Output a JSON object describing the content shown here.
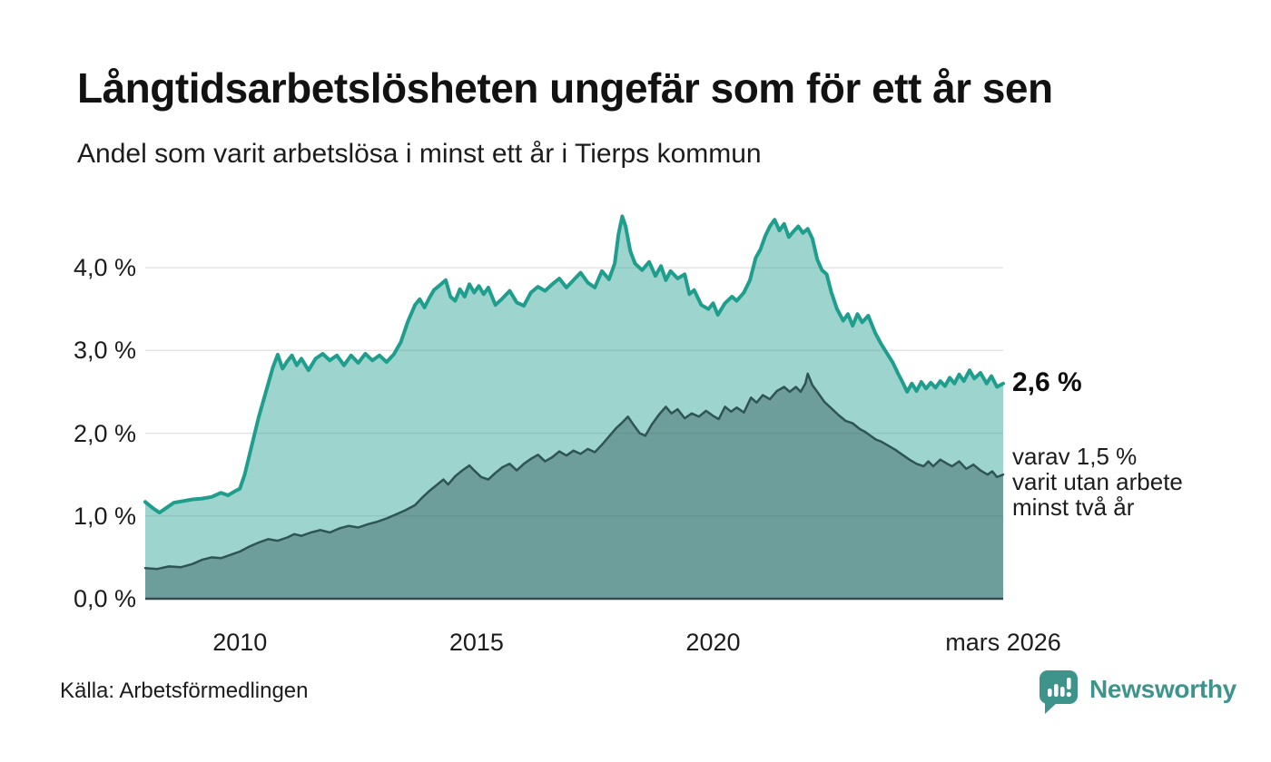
{
  "header": {
    "title": "Långtidsarbetslösheten ungefär som för ett år sen",
    "subtitle": "Andel som varit arbetslösa i minst ett år i Tierps kommun"
  },
  "annotations": {
    "end_label": "2,6 %",
    "end_value": 2.6,
    "sub_value": 1.5,
    "sub_lines": [
      "varav 1,5 %",
      "varit utan arbete",
      "minst två år"
    ]
  },
  "source": {
    "label": "Källa: Arbetsförmedlingen"
  },
  "branding": {
    "name": "Newsworthy",
    "color": "#3E948B",
    "logo_icon": "speech-bubble-bar-chart-exclamation"
  },
  "chart_data": {
    "type": "area",
    "title": "Långtidsarbetslösheten ungefär som för ett år sen",
    "subtitle": "Andel som varit arbetslösa i minst ett år i Tierps kommun",
    "xlabel": "",
    "ylabel": "",
    "unit": "%",
    "grid": "horizontal",
    "legend": "none",
    "x_domain": [
      2008.0,
      2026.13
    ],
    "ylim": [
      0,
      4.9
    ],
    "grid_color": "#e2e2e2",
    "axis_line_color": "#35494b",
    "yticks": [
      {
        "v": 0,
        "label": "0,0 %"
      },
      {
        "v": 1,
        "label": "1,0 %"
      },
      {
        "v": 2,
        "label": "2,0 %"
      },
      {
        "v": 3,
        "label": "3,0 %"
      },
      {
        "v": 4,
        "label": "4,0 %"
      }
    ],
    "xticks": [
      {
        "x": 2010,
        "label": "2010"
      },
      {
        "x": 2015,
        "label": "2015"
      },
      {
        "x": 2020,
        "label": "2020"
      },
      {
        "x": 2026.13,
        "label": "mars 2026"
      }
    ],
    "series": [
      {
        "name": "Arbetslösa minst ett år",
        "line_color": "#1F9E8E",
        "fill_color": "rgba(31,158,142,0.44)",
        "line_width": 4,
        "end_value": 2.6,
        "points": [
          [
            2008.0,
            1.17
          ],
          [
            2008.15,
            1.1
          ],
          [
            2008.3,
            1.04
          ],
          [
            2008.45,
            1.1
          ],
          [
            2008.6,
            1.16
          ],
          [
            2008.8,
            1.18
          ],
          [
            2009.0,
            1.2
          ],
          [
            2009.2,
            1.21
          ],
          [
            2009.4,
            1.23
          ],
          [
            2009.6,
            1.28
          ],
          [
            2009.75,
            1.25
          ],
          [
            2009.9,
            1.3
          ],
          [
            2010.0,
            1.33
          ],
          [
            2010.1,
            1.5
          ],
          [
            2010.25,
            1.85
          ],
          [
            2010.4,
            2.2
          ],
          [
            2010.55,
            2.5
          ],
          [
            2010.7,
            2.8
          ],
          [
            2010.8,
            2.95
          ],
          [
            2010.9,
            2.78
          ],
          [
            2011.0,
            2.87
          ],
          [
            2011.1,
            2.94
          ],
          [
            2011.2,
            2.82
          ],
          [
            2011.3,
            2.9
          ],
          [
            2011.45,
            2.76
          ],
          [
            2011.6,
            2.9
          ],
          [
            2011.75,
            2.96
          ],
          [
            2011.9,
            2.88
          ],
          [
            2012.05,
            2.94
          ],
          [
            2012.2,
            2.82
          ],
          [
            2012.35,
            2.94
          ],
          [
            2012.5,
            2.85
          ],
          [
            2012.65,
            2.96
          ],
          [
            2012.8,
            2.88
          ],
          [
            2012.95,
            2.94
          ],
          [
            2013.1,
            2.86
          ],
          [
            2013.25,
            2.95
          ],
          [
            2013.4,
            3.1
          ],
          [
            2013.55,
            3.35
          ],
          [
            2013.7,
            3.55
          ],
          [
            2013.8,
            3.62
          ],
          [
            2013.9,
            3.52
          ],
          [
            2014.0,
            3.63
          ],
          [
            2014.1,
            3.73
          ],
          [
            2014.25,
            3.8
          ],
          [
            2014.35,
            3.85
          ],
          [
            2014.45,
            3.65
          ],
          [
            2014.55,
            3.6
          ],
          [
            2014.65,
            3.74
          ],
          [
            2014.75,
            3.65
          ],
          [
            2014.85,
            3.8
          ],
          [
            2014.95,
            3.7
          ],
          [
            2015.05,
            3.78
          ],
          [
            2015.15,
            3.68
          ],
          [
            2015.25,
            3.76
          ],
          [
            2015.4,
            3.55
          ],
          [
            2015.55,
            3.63
          ],
          [
            2015.7,
            3.72
          ],
          [
            2015.85,
            3.58
          ],
          [
            2016.0,
            3.54
          ],
          [
            2016.15,
            3.7
          ],
          [
            2016.3,
            3.77
          ],
          [
            2016.45,
            3.72
          ],
          [
            2016.6,
            3.8
          ],
          [
            2016.75,
            3.87
          ],
          [
            2016.9,
            3.76
          ],
          [
            2017.05,
            3.85
          ],
          [
            2017.2,
            3.94
          ],
          [
            2017.35,
            3.82
          ],
          [
            2017.5,
            3.76
          ],
          [
            2017.65,
            3.96
          ],
          [
            2017.8,
            3.86
          ],
          [
            2017.92,
            4.05
          ],
          [
            2018.0,
            4.4
          ],
          [
            2018.08,
            4.62
          ],
          [
            2018.15,
            4.5
          ],
          [
            2018.25,
            4.2
          ],
          [
            2018.35,
            4.05
          ],
          [
            2018.5,
            3.97
          ],
          [
            2018.65,
            4.07
          ],
          [
            2018.78,
            3.9
          ],
          [
            2018.9,
            4.02
          ],
          [
            2019.0,
            3.85
          ],
          [
            2019.1,
            3.96
          ],
          [
            2019.25,
            3.87
          ],
          [
            2019.4,
            3.92
          ],
          [
            2019.5,
            3.68
          ],
          [
            2019.6,
            3.73
          ],
          [
            2019.75,
            3.55
          ],
          [
            2019.9,
            3.5
          ],
          [
            2020.0,
            3.57
          ],
          [
            2020.1,
            3.43
          ],
          [
            2020.25,
            3.57
          ],
          [
            2020.4,
            3.65
          ],
          [
            2020.5,
            3.6
          ],
          [
            2020.65,
            3.7
          ],
          [
            2020.78,
            3.85
          ],
          [
            2020.9,
            4.12
          ],
          [
            2021.0,
            4.22
          ],
          [
            2021.1,
            4.38
          ],
          [
            2021.2,
            4.5
          ],
          [
            2021.3,
            4.58
          ],
          [
            2021.4,
            4.45
          ],
          [
            2021.5,
            4.53
          ],
          [
            2021.6,
            4.37
          ],
          [
            2021.7,
            4.44
          ],
          [
            2021.8,
            4.5
          ],
          [
            2021.9,
            4.42
          ],
          [
            2022.0,
            4.47
          ],
          [
            2022.1,
            4.35
          ],
          [
            2022.2,
            4.1
          ],
          [
            2022.3,
            3.97
          ],
          [
            2022.4,
            3.92
          ],
          [
            2022.5,
            3.7
          ],
          [
            2022.62,
            3.5
          ],
          [
            2022.75,
            3.36
          ],
          [
            2022.85,
            3.44
          ],
          [
            2022.95,
            3.3
          ],
          [
            2023.05,
            3.44
          ],
          [
            2023.15,
            3.34
          ],
          [
            2023.28,
            3.42
          ],
          [
            2023.42,
            3.22
          ],
          [
            2023.55,
            3.08
          ],
          [
            2023.68,
            2.96
          ],
          [
            2023.8,
            2.85
          ],
          [
            2023.9,
            2.73
          ],
          [
            2024.0,
            2.62
          ],
          [
            2024.1,
            2.5
          ],
          [
            2024.2,
            2.6
          ],
          [
            2024.3,
            2.51
          ],
          [
            2024.4,
            2.62
          ],
          [
            2024.5,
            2.54
          ],
          [
            2024.6,
            2.61
          ],
          [
            2024.7,
            2.55
          ],
          [
            2024.8,
            2.63
          ],
          [
            2024.9,
            2.57
          ],
          [
            2025.0,
            2.67
          ],
          [
            2025.1,
            2.6
          ],
          [
            2025.2,
            2.71
          ],
          [
            2025.3,
            2.63
          ],
          [
            2025.42,
            2.76
          ],
          [
            2025.52,
            2.66
          ],
          [
            2025.65,
            2.73
          ],
          [
            2025.78,
            2.6
          ],
          [
            2025.88,
            2.69
          ],
          [
            2026.0,
            2.56
          ],
          [
            2026.13,
            2.6
          ]
        ]
      },
      {
        "name": "Arbetslösa minst två år",
        "line_color": "#2E5456",
        "fill_color": "rgba(46,84,86,0.42)",
        "line_width": 2.5,
        "end_value": 1.5,
        "points": [
          [
            2008.0,
            0.37
          ],
          [
            2008.25,
            0.36
          ],
          [
            2008.5,
            0.39
          ],
          [
            2008.75,
            0.38
          ],
          [
            2009.0,
            0.42
          ],
          [
            2009.2,
            0.47
          ],
          [
            2009.4,
            0.5
          ],
          [
            2009.6,
            0.49
          ],
          [
            2009.8,
            0.53
          ],
          [
            2010.0,
            0.57
          ],
          [
            2010.2,
            0.63
          ],
          [
            2010.4,
            0.68
          ],
          [
            2010.6,
            0.72
          ],
          [
            2010.8,
            0.7
          ],
          [
            2011.0,
            0.74
          ],
          [
            2011.15,
            0.78
          ],
          [
            2011.3,
            0.76
          ],
          [
            2011.5,
            0.8
          ],
          [
            2011.7,
            0.83
          ],
          [
            2011.9,
            0.8
          ],
          [
            2012.1,
            0.85
          ],
          [
            2012.3,
            0.88
          ],
          [
            2012.5,
            0.86
          ],
          [
            2012.7,
            0.9
          ],
          [
            2012.9,
            0.93
          ],
          [
            2013.1,
            0.97
          ],
          [
            2013.3,
            1.02
          ],
          [
            2013.5,
            1.07
          ],
          [
            2013.7,
            1.13
          ],
          [
            2013.85,
            1.22
          ],
          [
            2014.0,
            1.3
          ],
          [
            2014.15,
            1.37
          ],
          [
            2014.3,
            1.44
          ],
          [
            2014.4,
            1.38
          ],
          [
            2014.55,
            1.48
          ],
          [
            2014.7,
            1.55
          ],
          [
            2014.85,
            1.61
          ],
          [
            2014.95,
            1.55
          ],
          [
            2015.1,
            1.47
          ],
          [
            2015.25,
            1.44
          ],
          [
            2015.4,
            1.52
          ],
          [
            2015.55,
            1.59
          ],
          [
            2015.7,
            1.63
          ],
          [
            2015.85,
            1.55
          ],
          [
            2016.0,
            1.63
          ],
          [
            2016.15,
            1.69
          ],
          [
            2016.3,
            1.74
          ],
          [
            2016.45,
            1.66
          ],
          [
            2016.6,
            1.71
          ],
          [
            2016.75,
            1.78
          ],
          [
            2016.9,
            1.73
          ],
          [
            2017.05,
            1.79
          ],
          [
            2017.2,
            1.75
          ],
          [
            2017.35,
            1.81
          ],
          [
            2017.5,
            1.77
          ],
          [
            2017.65,
            1.86
          ],
          [
            2017.8,
            1.96
          ],
          [
            2017.95,
            2.06
          ],
          [
            2018.1,
            2.14
          ],
          [
            2018.2,
            2.2
          ],
          [
            2018.32,
            2.1
          ],
          [
            2018.45,
            2.0
          ],
          [
            2018.57,
            1.97
          ],
          [
            2018.7,
            2.1
          ],
          [
            2018.85,
            2.22
          ],
          [
            2019.0,
            2.32
          ],
          [
            2019.12,
            2.24
          ],
          [
            2019.25,
            2.29
          ],
          [
            2019.4,
            2.18
          ],
          [
            2019.55,
            2.24
          ],
          [
            2019.7,
            2.2
          ],
          [
            2019.85,
            2.27
          ],
          [
            2020.0,
            2.21
          ],
          [
            2020.12,
            2.17
          ],
          [
            2020.25,
            2.32
          ],
          [
            2020.38,
            2.26
          ],
          [
            2020.5,
            2.31
          ],
          [
            2020.65,
            2.25
          ],
          [
            2020.8,
            2.43
          ],
          [
            2020.92,
            2.37
          ],
          [
            2021.05,
            2.46
          ],
          [
            2021.2,
            2.41
          ],
          [
            2021.35,
            2.51
          ],
          [
            2021.5,
            2.56
          ],
          [
            2021.62,
            2.5
          ],
          [
            2021.75,
            2.56
          ],
          [
            2021.85,
            2.5
          ],
          [
            2021.95,
            2.6
          ],
          [
            2022.0,
            2.72
          ],
          [
            2022.1,
            2.58
          ],
          [
            2022.2,
            2.5
          ],
          [
            2022.35,
            2.38
          ],
          [
            2022.5,
            2.3
          ],
          [
            2022.65,
            2.22
          ],
          [
            2022.8,
            2.15
          ],
          [
            2022.95,
            2.12
          ],
          [
            2023.1,
            2.05
          ],
          [
            2023.2,
            2.02
          ],
          [
            2023.3,
            1.98
          ],
          [
            2023.45,
            1.92
          ],
          [
            2023.55,
            1.9
          ],
          [
            2023.7,
            1.85
          ],
          [
            2023.85,
            1.8
          ],
          [
            2024.0,
            1.74
          ],
          [
            2024.15,
            1.68
          ],
          [
            2024.3,
            1.63
          ],
          [
            2024.45,
            1.6
          ],
          [
            2024.55,
            1.66
          ],
          [
            2024.65,
            1.6
          ],
          [
            2024.8,
            1.68
          ],
          [
            2024.95,
            1.63
          ],
          [
            2025.05,
            1.6
          ],
          [
            2025.2,
            1.66
          ],
          [
            2025.35,
            1.57
          ],
          [
            2025.5,
            1.62
          ],
          [
            2025.65,
            1.55
          ],
          [
            2025.8,
            1.5
          ],
          [
            2025.9,
            1.54
          ],
          [
            2026.0,
            1.47
          ],
          [
            2026.13,
            1.5
          ]
        ]
      }
    ]
  }
}
